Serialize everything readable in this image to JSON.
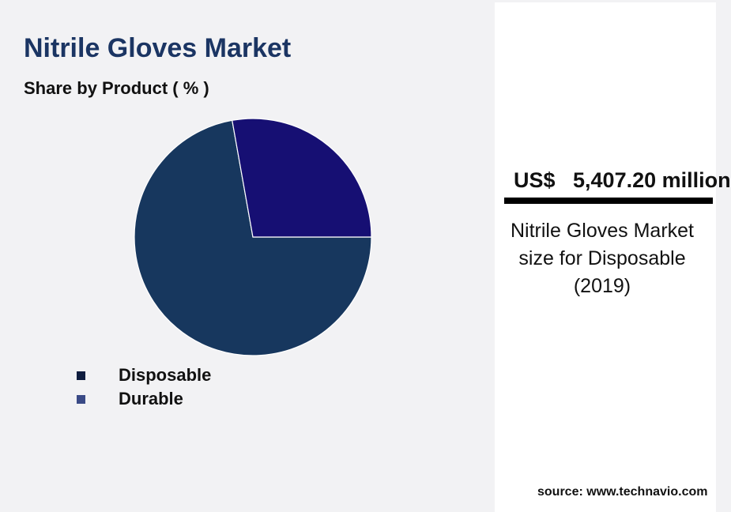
{
  "chart_data": {
    "type": "pie",
    "title": "Nitrile Gloves Market",
    "subtitle": "Share by Product ( % )",
    "slices": [
      {
        "label": "Disposable",
        "value": 72.2,
        "color": "#17375e",
        "legend_color": "#0f1d3f"
      },
      {
        "label": "Durable",
        "value": 27.8,
        "color": "#160f73",
        "legend_color": "#3a4a86"
      }
    ]
  },
  "highlight": {
    "value": "US$   5,407.20 million",
    "caption": "Nitrile Gloves Market size for Disposable (2019)"
  },
  "source": "source: www.technavio.com"
}
